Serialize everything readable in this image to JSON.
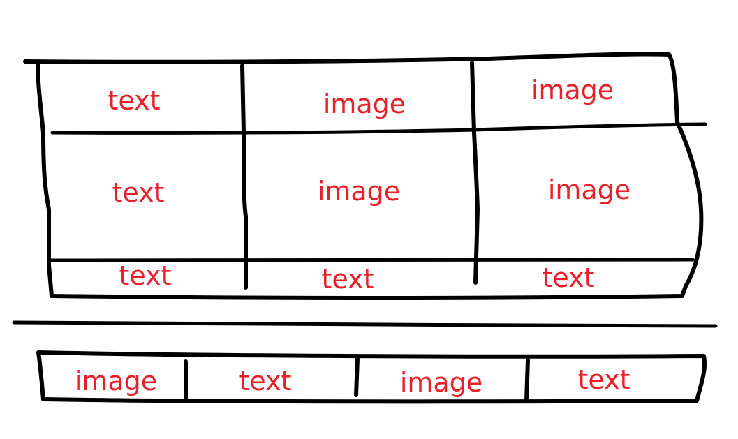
{
  "colors": {
    "line": "#000000",
    "label": "#e8202a"
  },
  "top_grid": {
    "rows": [
      {
        "cells": [
          "text",
          "image",
          "image"
        ]
      },
      {
        "cells": [
          "text",
          "image",
          "image"
        ]
      },
      {
        "cells": [
          "text",
          "text",
          "text"
        ]
      }
    ]
  },
  "bottom_strip": {
    "cells": [
      "image",
      "text",
      "image",
      "text"
    ]
  }
}
